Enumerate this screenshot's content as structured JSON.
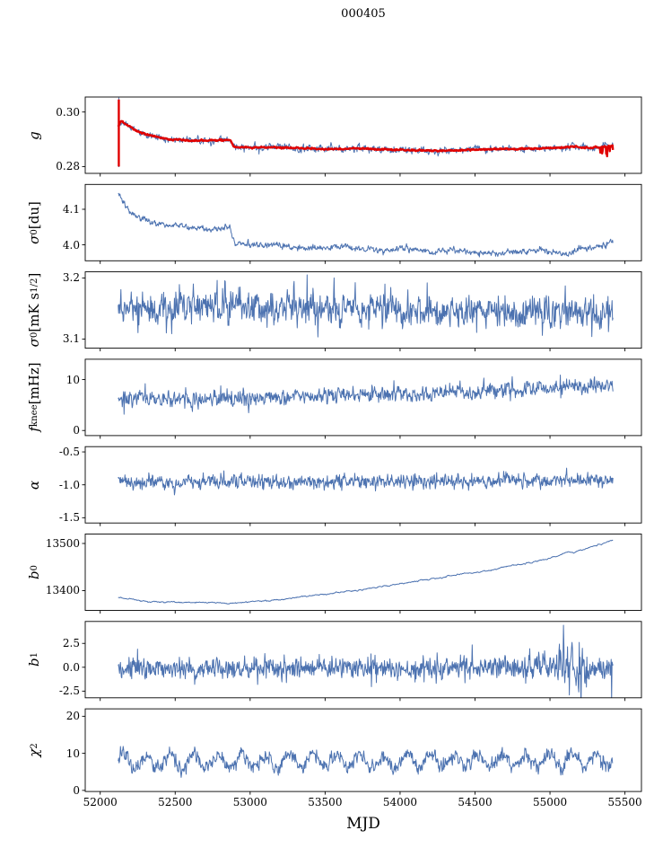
{
  "title": "000405",
  "chart_data": {
    "type": "line",
    "title": "000405",
    "xlabel": "MJD",
    "xlim": [
      51900,
      55610
    ],
    "xticks": [
      {
        "v": 52000,
        "label": "52000"
      },
      {
        "v": 52500,
        "label": "52500"
      },
      {
        "v": 53000,
        "label": "53000"
      },
      {
        "v": 53500,
        "label": "53500"
      },
      {
        "v": 54000,
        "label": "54000"
      },
      {
        "v": 54500,
        "label": "54500"
      },
      {
        "v": 55000,
        "label": "55000"
      },
      {
        "v": 55500,
        "label": "55500"
      }
    ],
    "x_data_range": [
      52120,
      55420
    ],
    "x_step_days": 3,
    "colors": {
      "line": "#4C72B0",
      "overlay": "#E00000",
      "axis": "#000000"
    },
    "legend": "none",
    "grid": false,
    "panels": [
      {
        "name": "g",
        "label_parts": [
          {
            "t": "g",
            "it": true
          }
        ],
        "ylim": [
          0.2775,
          0.3055
        ],
        "yticks": [
          {
            "v": 0.3,
            "label": "0.30"
          },
          {
            "v": 0.28,
            "label": "0.28"
          }
        ],
        "trend": [
          [
            52120,
            0.2945
          ],
          [
            52140,
            0.2968
          ],
          [
            52180,
            0.2952
          ],
          [
            52250,
            0.2928
          ],
          [
            52350,
            0.2912
          ],
          [
            52450,
            0.29
          ],
          [
            52600,
            0.2895
          ],
          [
            52750,
            0.2896
          ],
          [
            52870,
            0.2898
          ],
          [
            52890,
            0.2872
          ],
          [
            53000,
            0.2869
          ],
          [
            53150,
            0.2871
          ],
          [
            53300,
            0.2868
          ],
          [
            53500,
            0.2864
          ],
          [
            53700,
            0.2866
          ],
          [
            53900,
            0.2863
          ],
          [
            54100,
            0.2859
          ],
          [
            54300,
            0.2858
          ],
          [
            54500,
            0.2862
          ],
          [
            54700,
            0.2864
          ],
          [
            54900,
            0.2866
          ],
          [
            55050,
            0.2869
          ],
          [
            55150,
            0.2873
          ],
          [
            55250,
            0.2867
          ],
          [
            55350,
            0.2873
          ],
          [
            55420,
            0.2876
          ]
        ],
        "events": [
          [
            52960,
            0.2853
          ],
          [
            53060,
            0.2846
          ],
          [
            53340,
            0.285
          ],
          [
            53620,
            0.2852
          ],
          [
            54310,
            0.2848
          ],
          [
            54830,
            0.2851
          ],
          [
            55120,
            0.2885
          ]
        ],
        "series": [
          {
            "name": "gain-raw",
            "colorKey": "line",
            "lw": 1.0,
            "noise": 0.00055,
            "ar": 0.5,
            "seed": 11,
            "applyEvents": true,
            "spike": {
              "x": 52124,
              "y0": 0.2798,
              "y1": 0.3053
            }
          },
          {
            "name": "gain-smoothed",
            "colorKey": "overlay",
            "lw": 2.4,
            "noise": 0.00012,
            "ar": 0.5,
            "seed": 12,
            "spike": {
              "x": 52124,
              "y0": 0.28,
              "y1": 0.3046
            },
            "end_noise": {
              "from": 55335,
              "sigma": 0.0015,
              "bias": -0.0008,
              "prob": 0.3
            }
          }
        ]
      },
      {
        "name": "sigma0-du",
        "label_parts": [
          {
            "t": "σ",
            "it": true
          },
          {
            "t": "0",
            "sub": true
          },
          {
            "t": " [du]"
          }
        ],
        "ylim": [
          3.955,
          4.17
        ],
        "yticks": [
          {
            "v": 4.1,
            "label": "4.1"
          },
          {
            "v": 4.0,
            "label": "4.0"
          }
        ],
        "trend": [
          [
            52120,
            4.148
          ],
          [
            52160,
            4.115
          ],
          [
            52220,
            4.085
          ],
          [
            52300,
            4.068
          ],
          [
            52400,
            4.058
          ],
          [
            52550,
            4.052
          ],
          [
            52700,
            4.047
          ],
          [
            52870,
            4.042
          ],
          [
            52895,
            4.006
          ],
          [
            53000,
            4.0
          ],
          [
            53150,
            3.998
          ],
          [
            53300,
            3.993
          ],
          [
            53450,
            3.99
          ],
          [
            53600,
            3.994
          ],
          [
            53750,
            3.99
          ],
          [
            53900,
            3.985
          ],
          [
            54050,
            3.99
          ],
          [
            54200,
            3.98
          ],
          [
            54350,
            3.985
          ],
          [
            54500,
            3.979
          ],
          [
            54650,
            3.975
          ],
          [
            54800,
            3.982
          ],
          [
            54950,
            3.985
          ],
          [
            55050,
            3.978
          ],
          [
            55120,
            3.97
          ],
          [
            55220,
            3.99
          ],
          [
            55320,
            3.996
          ],
          [
            55420,
            4.01
          ]
        ],
        "events": [],
        "series": [
          {
            "name": "sigma0-du-series",
            "colorKey": "line",
            "lw": 1.0,
            "noise": 0.004,
            "ar": 0.5,
            "seed": 21,
            "applyEvents": true
          }
        ]
      },
      {
        "name": "sigma0-mk",
        "label_parts": [
          {
            "t": "σ",
            "it": true
          },
          {
            "t": "0",
            "sub": true
          },
          {
            "t": " [mK s"
          },
          {
            "t": "1/2",
            "sup": true
          },
          {
            "t": "]"
          }
        ],
        "ylim": [
          3.085,
          3.21
        ],
        "yticks": [
          {
            "v": 3.2,
            "label": "3.2"
          },
          {
            "v": 3.1,
            "label": "3.1"
          }
        ],
        "trend": [
          [
            52120,
            3.15
          ],
          [
            52600,
            3.153
          ],
          [
            53200,
            3.15
          ],
          [
            53800,
            3.15
          ],
          [
            54400,
            3.147
          ],
          [
            54900,
            3.146
          ],
          [
            55200,
            3.142
          ],
          [
            55420,
            3.137
          ]
        ],
        "events": [
          [
            52440,
            3.11
          ],
          [
            52780,
            3.196
          ],
          [
            53380,
            3.205
          ],
          [
            53560,
            3.2
          ],
          [
            53900,
            3.19
          ],
          [
            54180,
            3.192
          ],
          [
            54950,
            3.106
          ],
          [
            55280,
            3.104
          ],
          [
            55390,
            3.112
          ]
        ],
        "series": [
          {
            "name": "sigma0-mk-series",
            "colorKey": "line",
            "lw": 1.0,
            "noise": 0.013,
            "ar": 0.35,
            "seed": 31,
            "applyEvents": true
          }
        ]
      },
      {
        "name": "fknee",
        "label_parts": [
          {
            "t": "f",
            "it": true
          },
          {
            "t": "knee",
            "sub": true
          },
          {
            "t": " [mHz]"
          }
        ],
        "ylim": [
          -1,
          14
        ],
        "yticks": [
          {
            "v": 10,
            "label": "10"
          },
          {
            "v": 0,
            "label": "0"
          }
        ],
        "trend": [
          [
            52120,
            6.6
          ],
          [
            52400,
            6.2
          ],
          [
            52800,
            6.3
          ],
          [
            53200,
            6.6
          ],
          [
            53600,
            7.0
          ],
          [
            54000,
            7.2
          ],
          [
            54400,
            7.7
          ],
          [
            54800,
            8.0
          ],
          [
            55100,
            8.5
          ],
          [
            55420,
            8.8
          ]
        ],
        "events": [
          [
            52160,
            3.2
          ],
          [
            52300,
            9.2
          ],
          [
            53960,
            9.8
          ],
          [
            54560,
            10.3
          ],
          [
            55070,
            10.9
          ]
        ],
        "clampMin": 2.5,
        "series": [
          {
            "name": "fknee-series",
            "colorKey": "line",
            "lw": 1.0,
            "noise": 0.75,
            "ar": 0.35,
            "seed": 41,
            "applyEvents": true
          }
        ]
      },
      {
        "name": "alpha",
        "label_parts": [
          {
            "t": "α",
            "it": true
          }
        ],
        "ylim": [
          -1.58,
          -0.42
        ],
        "yticks": [
          {
            "v": -0.5,
            "label": "-0.5"
          },
          {
            "v": -1.0,
            "label": "-1.0"
          },
          {
            "v": -1.5,
            "label": "-1.5"
          }
        ],
        "trend": [
          [
            52120,
            -0.97
          ],
          [
            53000,
            -0.96
          ],
          [
            54000,
            -0.95
          ],
          [
            55420,
            -0.93
          ]
        ],
        "events": [],
        "series": [
          {
            "name": "alpha-series",
            "colorKey": "line",
            "lw": 1.0,
            "noise": 0.05,
            "ar": 0.3,
            "seed": 51,
            "applyEvents": true
          }
        ]
      },
      {
        "name": "b0",
        "label_parts": [
          {
            "t": "b",
            "it": true
          },
          {
            "t": "0",
            "sub": true
          }
        ],
        "ylim": [
          13358,
          13520
        ],
        "yticks": [
          {
            "v": 13500,
            "label": "13500"
          },
          {
            "v": 13400,
            "label": "13400"
          }
        ],
        "trend": [
          [
            52120,
            13386
          ],
          [
            52250,
            13379
          ],
          [
            52450,
            13375
          ],
          [
            52650,
            13376
          ],
          [
            52850,
            13373
          ],
          [
            53000,
            13376
          ],
          [
            53200,
            13381
          ],
          [
            53450,
            13390
          ],
          [
            53700,
            13400
          ],
          [
            53950,
            13412
          ],
          [
            54200,
            13424
          ],
          [
            54450,
            13436
          ],
          [
            54700,
            13450
          ],
          [
            54900,
            13461
          ],
          [
            55050,
            13472
          ],
          [
            55120,
            13484
          ],
          [
            55160,
            13479
          ],
          [
            55250,
            13491
          ],
          [
            55340,
            13498
          ],
          [
            55420,
            13507
          ]
        ],
        "events": [],
        "series": [
          {
            "name": "b0-series",
            "colorKey": "line",
            "lw": 1.0,
            "noise": 0.5,
            "ar": 0.85,
            "seed": 61,
            "applyEvents": true
          }
        ]
      },
      {
        "name": "b1",
        "label_parts": [
          {
            "t": "b",
            "it": true
          },
          {
            "t": "1",
            "sub": true
          }
        ],
        "ylim": [
          -3.2,
          4.8
        ],
        "yticks": [
          {
            "v": 2.5,
            "label": "2.5"
          },
          {
            "v": 0.0,
            "label": "0.0"
          },
          {
            "v": -2.5,
            "label": "-2.5"
          }
        ],
        "trend": [
          [
            52120,
            -0.1
          ],
          [
            53500,
            -0.05
          ],
          [
            55420,
            -0.05
          ]
        ],
        "events": [
          [
            52250,
            1.9
          ],
          [
            53050,
            -1.8
          ],
          [
            54480,
            2.35
          ],
          [
            55090,
            4.4
          ],
          [
            55130,
            -2.9
          ],
          [
            55195,
            2.6
          ],
          [
            55410,
            -3.45
          ]
        ],
        "noise_boost": {
          "from": 55040,
          "to": 55260,
          "factor": 2.2
        },
        "series": [
          {
            "name": "b1-series",
            "colorKey": "line",
            "lw": 1.0,
            "noise": 0.55,
            "ar": 0.25,
            "seed": 71,
            "applyEvents": true
          }
        ]
      },
      {
        "name": "chi2",
        "label_parts": [
          {
            "t": "χ",
            "it": true
          },
          {
            "t": "2",
            "sup": true
          }
        ],
        "ylim": [
          -0.3,
          22
        ],
        "yticks": [
          {
            "v": 20,
            "label": "20"
          },
          {
            "v": 10,
            "label": "10"
          },
          {
            "v": 0,
            "label": "0"
          }
        ],
        "trend": [
          [
            52120,
            7.6
          ],
          [
            53000,
            8.0
          ],
          [
            54000,
            8.0
          ],
          [
            55000,
            8.2
          ],
          [
            55420,
            8.4
          ]
        ],
        "osc": {
          "amp": 1.7,
          "period": 158,
          "phase": 0.3
        },
        "events": [],
        "clampMin": 3.5,
        "series": [
          {
            "name": "chi2-series",
            "colorKey": "line",
            "lw": 1.0,
            "noise": 0.9,
            "ar": 0.35,
            "seed": 81,
            "applyEvents": true
          }
        ]
      }
    ]
  }
}
